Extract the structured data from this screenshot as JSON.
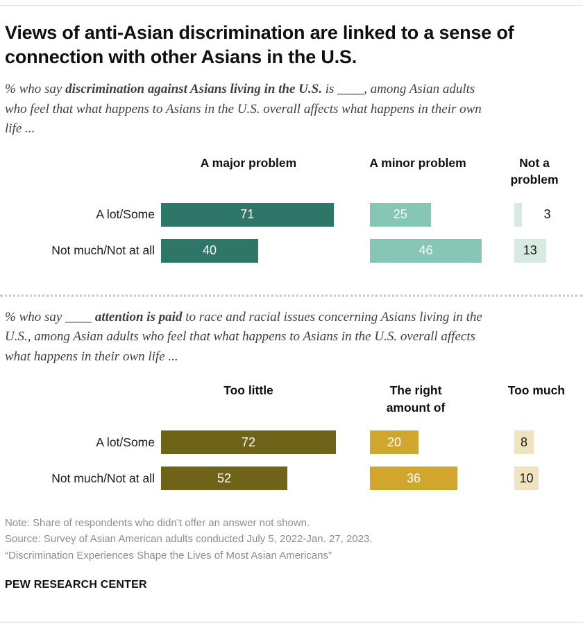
{
  "title": "Views of anti-Asian discrimination are linked to a sense of connection with other Asians in the U.S.",
  "charts": [
    {
      "subtitle": {
        "prefix": "% who say ",
        "bold": "discrimination against Asians living in the U.S.",
        "suffix": " is ____, among Asian adults who feel that what happens to Asians in the U.S. overall affects what happens in their own life ..."
      }
    },
    {
      "subtitle": {
        "prefix": "% who say ____ ",
        "bold": "attention is paid",
        "suffix": " to race and racial issues concerning Asians living in the U.S., among Asian adults who feel that what happens to Asians in the U.S. overall affects what happens in their own life ..."
      }
    }
  ],
  "chart_data": [
    {
      "type": "bar",
      "orientation": "horizontal",
      "unit": "%",
      "title": "% who say discrimination against Asians living in the U.S. is ____, among Asian adults who feel that what happens to Asians in the U.S. overall affects what happens in their own life ...",
      "categories": [
        "A lot/Some",
        "Not much/Not at all"
      ],
      "series": [
        {
          "name": "A major problem",
          "color": "#2e7668",
          "values": [
            71,
            40
          ]
        },
        {
          "name": "A minor problem",
          "color": "#85c6b5",
          "values": [
            25,
            46
          ]
        },
        {
          "name": "Not a problem",
          "color": "#d7ebe3",
          "values": [
            3,
            13
          ]
        }
      ],
      "xlim": [
        0,
        100
      ],
      "grid": false,
      "legend": "column headers above bars"
    },
    {
      "type": "bar",
      "orientation": "horizontal",
      "unit": "%",
      "title": "% who say ____ attention is paid to race and racial issues concerning Asians living in the U.S., among Asian adults who feel that what happens to Asians in the U.S. overall affects what happens in their own life ...",
      "categories": [
        "A lot/Some",
        "Not much/Not at all"
      ],
      "series": [
        {
          "name": "Too little",
          "color": "#6f6219",
          "values": [
            72,
            52
          ]
        },
        {
          "name": "The right amount of",
          "color": "#d1a62f",
          "values": [
            20,
            36
          ]
        },
        {
          "name": "Too much",
          "color": "#f0e3c0",
          "values": [
            8,
            10
          ]
        }
      ],
      "xlim": [
        0,
        100
      ],
      "grid": false,
      "legend": "column headers above bars"
    }
  ],
  "notes": {
    "note": "Note: Share of respondents who didn’t offer an answer not shown.",
    "source": "Source: Survey of Asian American adults conducted July 5, 2022-Jan. 27, 2023.",
    "report": "“Discrimination Experiences Shape the Lives of Most Asian Americans”"
  },
  "footer": "PEW RESEARCH CENTER",
  "theme": {
    "teal_dark": "#2e7668",
    "teal_mid": "#85c6b5",
    "teal_light": "#d7ebe3",
    "olive_dark": "#6f6219",
    "gold": "#d1a62f",
    "tan_light": "#f0e3c0",
    "text_dark": "#101010",
    "subtitle_gray": "#404040",
    "note_gray": "#8d8d8d",
    "rule_gray": "#d2d2d2"
  }
}
